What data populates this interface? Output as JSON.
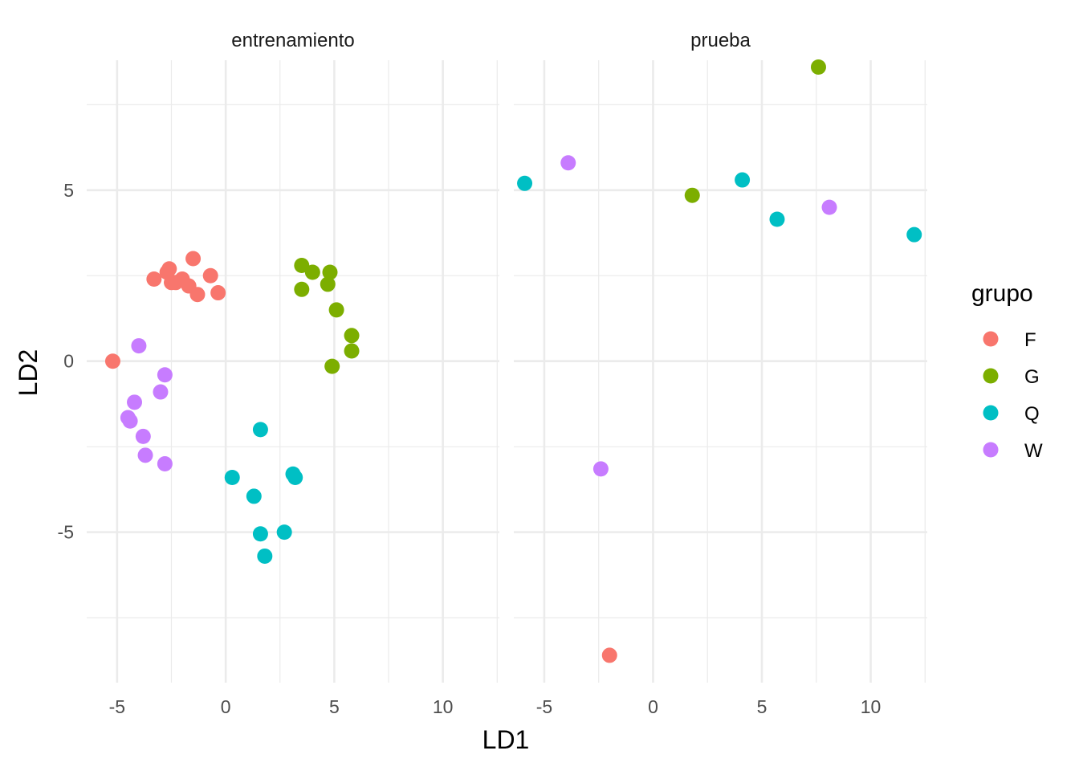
{
  "chart_data": {
    "type": "scatter",
    "xlabel": "LD1",
    "ylabel": "LD2",
    "xlim": [
      -6.4,
      12.6
    ],
    "ylim": [
      -9.4,
      8.8
    ],
    "x_ticks": [
      -5,
      0,
      5,
      10
    ],
    "x_tick_labels": [
      "-5",
      "0",
      "5",
      "10"
    ],
    "y_ticks": [
      -5,
      0,
      5
    ],
    "y_tick_labels": [
      "-5",
      "0",
      "5"
    ],
    "grid": true,
    "legend": {
      "title": "grupo",
      "position": "right",
      "entries": [
        {
          "label": "F",
          "color": "#F8766D"
        },
        {
          "label": "G",
          "color": "#7CAE00"
        },
        {
          "label": "Q",
          "color": "#00BFC4"
        },
        {
          "label": "W",
          "color": "#C77CFF"
        }
      ]
    },
    "panels": [
      {
        "title": "entrenamiento",
        "series": [
          {
            "name": "F",
            "points": [
              [
                -5.2,
                0.0
              ],
              [
                -3.3,
                2.4
              ],
              [
                -2.7,
                2.6
              ],
              [
                -2.6,
                2.7
              ],
              [
                -2.5,
                2.3
              ],
              [
                -2.3,
                2.3
              ],
              [
                -2.0,
                2.4
              ],
              [
                -1.7,
                2.2
              ],
              [
                -1.5,
                3.0
              ],
              [
                -1.3,
                1.95
              ],
              [
                -0.7,
                2.5
              ],
              [
                -0.35,
                2.0
              ]
            ]
          },
          {
            "name": "G",
            "points": [
              [
                3.5,
                2.8
              ],
              [
                4.0,
                2.6
              ],
              [
                4.8,
                2.6
              ],
              [
                3.5,
                2.1
              ],
              [
                4.7,
                2.25
              ],
              [
                5.1,
                1.5
              ],
              [
                5.8,
                0.75
              ],
              [
                5.8,
                0.3
              ],
              [
                4.9,
                -0.15
              ]
            ]
          },
          {
            "name": "Q",
            "points": [
              [
                1.6,
                -2.0
              ],
              [
                0.3,
                -3.4
              ],
              [
                3.1,
                -3.3
              ],
              [
                3.2,
                -3.4
              ],
              [
                1.3,
                -3.95
              ],
              [
                2.7,
                -5.0
              ],
              [
                1.6,
                -5.05
              ],
              [
                1.8,
                -5.7
              ]
            ]
          },
          {
            "name": "W",
            "points": [
              [
                -4.0,
                0.45
              ],
              [
                -2.8,
                -0.4
              ],
              [
                -3.0,
                -0.9
              ],
              [
                -4.2,
                -1.2
              ],
              [
                -4.5,
                -1.65
              ],
              [
                -4.4,
                -1.75
              ],
              [
                -3.8,
                -2.2
              ],
              [
                -3.7,
                -2.75
              ],
              [
                -2.8,
                -3.0
              ]
            ]
          }
        ]
      },
      {
        "title": "prueba",
        "series": [
          {
            "name": "F",
            "points": [
              [
                -2.0,
                -8.6
              ]
            ]
          },
          {
            "name": "G",
            "points": [
              [
                7.6,
                8.6
              ],
              [
                1.8,
                4.85
              ]
            ]
          },
          {
            "name": "Q",
            "points": [
              [
                -5.9,
                5.2
              ],
              [
                4.1,
                5.3
              ],
              [
                5.7,
                4.15
              ],
              [
                12.0,
                3.7
              ]
            ]
          },
          {
            "name": "W",
            "points": [
              [
                -3.9,
                5.8
              ],
              [
                8.1,
                4.5
              ],
              [
                -2.4,
                -3.15
              ]
            ]
          }
        ]
      }
    ]
  }
}
